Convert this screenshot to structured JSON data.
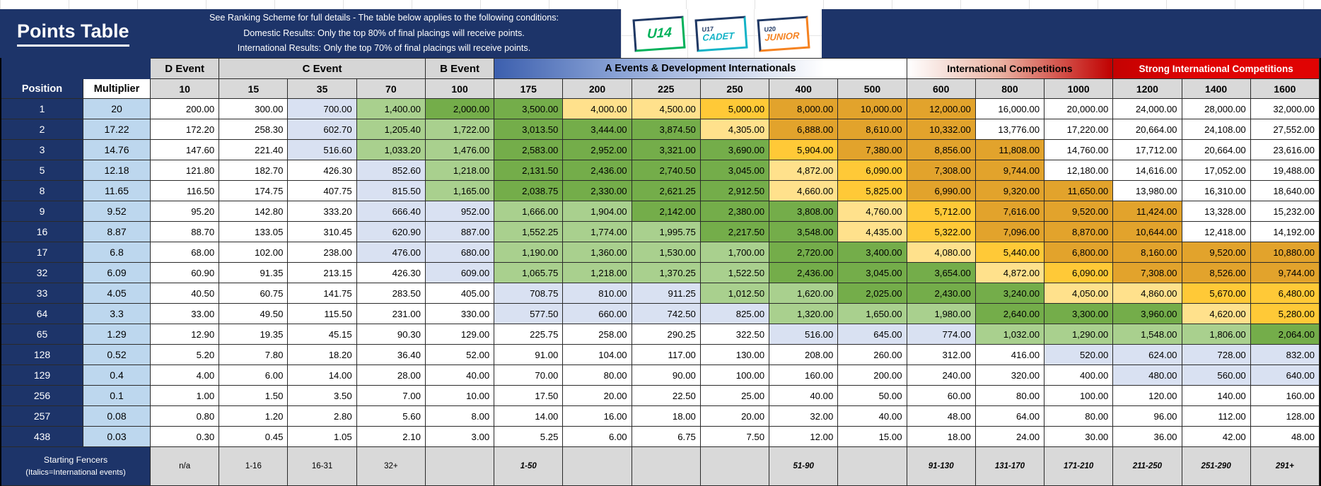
{
  "banner": {
    "title": "Points Table",
    "conditions": [
      "See Ranking Scheme for full details - The table below applies to the following conditions:",
      "Domestic Results: Only the top 80% of final placings will receive points.",
      "International Results: Only the top 70% of final placings will receive points."
    ],
    "logos": [
      {
        "big": "U14",
        "small": "",
        "sub": "",
        "accent": "#00b15a"
      },
      {
        "big": "",
        "small": "U17",
        "sub": "CADET",
        "accent": "#14b3c7"
      },
      {
        "big": "",
        "small": "U20",
        "sub": "JUNIOR",
        "accent": "#f58220"
      }
    ]
  },
  "groups": [
    {
      "label": "D Event",
      "span": 1
    },
    {
      "label": "C Event",
      "span": 3
    },
    {
      "label": "B Event",
      "span": 1
    },
    {
      "label": "A Events & Development Internationals",
      "span": 6
    },
    {
      "label": "International Competitions",
      "span": 3
    },
    {
      "label": "Strong International Competitions",
      "span": 3
    }
  ],
  "header": {
    "position": "Position",
    "multiplier": "Multiplier",
    "columns": [
      "10",
      "15",
      "35",
      "70",
      "100",
      "175",
      "200",
      "225",
      "250",
      "400",
      "500",
      "600",
      "800",
      "1000",
      "1200",
      "1400",
      "1600"
    ]
  },
  "rows": [
    {
      "position": "1",
      "multiplier": "20",
      "values": [
        "200.00",
        "300.00",
        "700.00",
        "1,400.00",
        "2,000.00",
        "3,500.00",
        "4,000.00",
        "4,500.00",
        "5,000.00",
        "8,000.00",
        "10,000.00",
        "12,000.00",
        "16,000.00",
        "20,000.00",
        "24,000.00",
        "28,000.00",
        "32,000.00"
      ]
    },
    {
      "position": "2",
      "multiplier": "17.22",
      "values": [
        "172.20",
        "258.30",
        "602.70",
        "1,205.40",
        "1,722.00",
        "3,013.50",
        "3,444.00",
        "3,874.50",
        "4,305.00",
        "6,888.00",
        "8,610.00",
        "10,332.00",
        "13,776.00",
        "17,220.00",
        "20,664.00",
        "24,108.00",
        "27,552.00"
      ]
    },
    {
      "position": "3",
      "multiplier": "14.76",
      "values": [
        "147.60",
        "221.40",
        "516.60",
        "1,033.20",
        "1,476.00",
        "2,583.00",
        "2,952.00",
        "3,321.00",
        "3,690.00",
        "5,904.00",
        "7,380.00",
        "8,856.00",
        "11,808.00",
        "14,760.00",
        "17,712.00",
        "20,664.00",
        "23,616.00"
      ]
    },
    {
      "position": "5",
      "multiplier": "12.18",
      "values": [
        "121.80",
        "182.70",
        "426.30",
        "852.60",
        "1,218.00",
        "2,131.50",
        "2,436.00",
        "2,740.50",
        "3,045.00",
        "4,872.00",
        "6,090.00",
        "7,308.00",
        "9,744.00",
        "12,180.00",
        "14,616.00",
        "17,052.00",
        "19,488.00"
      ]
    },
    {
      "position": "8",
      "multiplier": "11.65",
      "values": [
        "116.50",
        "174.75",
        "407.75",
        "815.50",
        "1,165.00",
        "2,038.75",
        "2,330.00",
        "2,621.25",
        "2,912.50",
        "4,660.00",
        "5,825.00",
        "6,990.00",
        "9,320.00",
        "11,650.00",
        "13,980.00",
        "16,310.00",
        "18,640.00"
      ]
    },
    {
      "position": "9",
      "multiplier": "9.52",
      "values": [
        "95.20",
        "142.80",
        "333.20",
        "666.40",
        "952.00",
        "1,666.00",
        "1,904.00",
        "2,142.00",
        "2,380.00",
        "3,808.00",
        "4,760.00",
        "5,712.00",
        "7,616.00",
        "9,520.00",
        "11,424.00",
        "13,328.00",
        "15,232.00"
      ]
    },
    {
      "position": "16",
      "multiplier": "8.87",
      "values": [
        "88.70",
        "133.05",
        "310.45",
        "620.90",
        "887.00",
        "1,552.25",
        "1,774.00",
        "1,995.75",
        "2,217.50",
        "3,548.00",
        "4,435.00",
        "5,322.00",
        "7,096.00",
        "8,870.00",
        "10,644.00",
        "12,418.00",
        "14,192.00"
      ]
    },
    {
      "position": "17",
      "multiplier": "6.8",
      "values": [
        "68.00",
        "102.00",
        "238.00",
        "476.00",
        "680.00",
        "1,190.00",
        "1,360.00",
        "1,530.00",
        "1,700.00",
        "2,720.00",
        "3,400.00",
        "4,080.00",
        "5,440.00",
        "6,800.00",
        "8,160.00",
        "9,520.00",
        "10,880.00"
      ]
    },
    {
      "position": "32",
      "multiplier": "6.09",
      "values": [
        "60.90",
        "91.35",
        "213.15",
        "426.30",
        "609.00",
        "1,065.75",
        "1,218.00",
        "1,370.25",
        "1,522.50",
        "2,436.00",
        "3,045.00",
        "3,654.00",
        "4,872.00",
        "6,090.00",
        "7,308.00",
        "8,526.00",
        "9,744.00"
      ]
    },
    {
      "position": "33",
      "multiplier": "4.05",
      "values": [
        "40.50",
        "60.75",
        "141.75",
        "283.50",
        "405.00",
        "708.75",
        "810.00",
        "911.25",
        "1,012.50",
        "1,620.00",
        "2,025.00",
        "2,430.00",
        "3,240.00",
        "4,050.00",
        "4,860.00",
        "5,670.00",
        "6,480.00"
      ]
    },
    {
      "position": "64",
      "multiplier": "3.3",
      "values": [
        "33.00",
        "49.50",
        "115.50",
        "231.00",
        "330.00",
        "577.50",
        "660.00",
        "742.50",
        "825.00",
        "1,320.00",
        "1,650.00",
        "1,980.00",
        "2,640.00",
        "3,300.00",
        "3,960.00",
        "4,620.00",
        "5,280.00"
      ]
    },
    {
      "position": "65",
      "multiplier": "1.29",
      "values": [
        "12.90",
        "19.35",
        "45.15",
        "90.30",
        "129.00",
        "225.75",
        "258.00",
        "290.25",
        "322.50",
        "516.00",
        "645.00",
        "774.00",
        "1,032.00",
        "1,290.00",
        "1,548.00",
        "1,806.00",
        "2,064.00"
      ]
    },
    {
      "position": "128",
      "multiplier": "0.52",
      "values": [
        "5.20",
        "7.80",
        "18.20",
        "36.40",
        "52.00",
        "91.00",
        "104.00",
        "117.00",
        "130.00",
        "208.00",
        "260.00",
        "312.00",
        "416.00",
        "520.00",
        "624.00",
        "728.00",
        "832.00"
      ]
    },
    {
      "position": "129",
      "multiplier": "0.4",
      "values": [
        "4.00",
        "6.00",
        "14.00",
        "28.00",
        "40.00",
        "70.00",
        "80.00",
        "90.00",
        "100.00",
        "160.00",
        "200.00",
        "240.00",
        "320.00",
        "400.00",
        "480.00",
        "560.00",
        "640.00"
      ]
    },
    {
      "position": "256",
      "multiplier": "0.1",
      "values": [
        "1.00",
        "1.50",
        "3.50",
        "7.00",
        "10.00",
        "17.50",
        "20.00",
        "22.50",
        "25.00",
        "40.00",
        "50.00",
        "60.00",
        "80.00",
        "100.00",
        "120.00",
        "140.00",
        "160.00"
      ]
    },
    {
      "position": "257",
      "multiplier": "0.08",
      "values": [
        "0.80",
        "1.20",
        "2.80",
        "5.60",
        "8.00",
        "14.00",
        "16.00",
        "18.00",
        "20.00",
        "32.00",
        "40.00",
        "48.00",
        "64.00",
        "80.00",
        "96.00",
        "112.00",
        "128.00"
      ]
    },
    {
      "position": "438",
      "multiplier": "0.03",
      "values": [
        "0.30",
        "0.45",
        "1.05",
        "2.10",
        "3.00",
        "5.25",
        "6.00",
        "6.75",
        "7.50",
        "12.00",
        "15.00",
        "18.00",
        "24.00",
        "30.00",
        "36.00",
        "42.00",
        "48.00"
      ]
    }
  ],
  "footer": {
    "label_line1": "Starting Fencers",
    "label_line2": "(Italics=International events)",
    "cells": [
      {
        "t": "n/a",
        "intl": false
      },
      {
        "t": "1-16",
        "intl": false
      },
      {
        "t": "16-31",
        "intl": false
      },
      {
        "t": "32+",
        "intl": false
      },
      {
        "t": "",
        "intl": false
      },
      {
        "t": "1-50",
        "intl": true
      },
      {
        "t": "",
        "intl": false
      },
      {
        "t": "",
        "intl": false
      },
      {
        "t": "",
        "intl": false
      },
      {
        "t": "51-90",
        "intl": true
      },
      {
        "t": "",
        "intl": false
      },
      {
        "t": "91-130",
        "intl": true
      },
      {
        "t": "131-170",
        "intl": true
      },
      {
        "t": "171-210",
        "intl": true
      },
      {
        "t": "211-250",
        "intl": true
      },
      {
        "t": "251-290",
        "intl": true
      },
      {
        "t": "291+",
        "intl": true
      }
    ]
  },
  "colors": {
    "banner_blue": "#1d3469",
    "position_blue": "#1d3469",
    "multiplier_blue": "#bdd7ee",
    "header_gray": "#d9d9d9",
    "strong_red": "#c00000",
    "lavender": "#d9e1f2",
    "green_light": "#a9d08e",
    "green": "#74ad4a",
    "yellow": "#ffe18c",
    "amber": "#ffc937",
    "orange": "#e2a32c",
    "white": "#ffffff"
  },
  "color_scale": {
    "bands": [
      [
        450,
        1000,
        "lavender"
      ],
      [
        1000,
        2000,
        "green_light"
      ],
      [
        2000,
        3980,
        "green"
      ],
      [
        3980,
        4950,
        "yellow"
      ],
      [
        4950,
        6600,
        "amber"
      ],
      [
        6600,
        12101,
        "orange"
      ]
    ]
  }
}
